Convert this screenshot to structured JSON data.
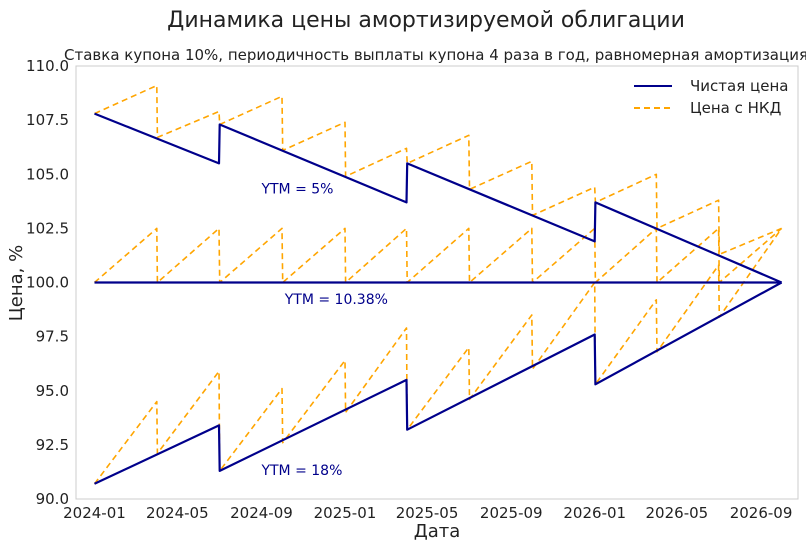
{
  "chart_data": {
    "type": "line",
    "title": "Динамика цены амортизируемой облигации",
    "subtitle": "Ставка купона 10%, периодичность выплаты купона 4 раза в год, равномерная амортизация",
    "xlabel": "Дата",
    "ylabel": "Цена, %",
    "ylim": [
      90,
      110
    ],
    "yticks": [
      "90.0",
      "92.5",
      "95.0",
      "97.5",
      "100.0",
      "102.5",
      "105.0",
      "107.5",
      "110.0"
    ],
    "xlim": [
      "2023-12-05",
      "2026-10-25"
    ],
    "xticks": [
      "2024-01",
      "2024-05",
      "2024-09",
      "2025-01",
      "2025-05",
      "2025-09",
      "2026-01",
      "2026-05",
      "2026-09"
    ],
    "grid": false,
    "legend_position": "top-right",
    "legend": [
      {
        "label": "Чистая цена",
        "color": "#00008b",
        "style": "solid"
      },
      {
        "label": "Цена с НКД",
        "color": "#ffa500",
        "style": "dashed"
      }
    ],
    "coupon_dates": [
      "2024-01-01",
      "2024-04-01",
      "2024-07-01",
      "2024-10-01",
      "2025-01-01",
      "2025-04-01",
      "2025-07-01",
      "2025-10-01",
      "2026-01-01",
      "2026-04-01",
      "2026-07-01",
      "2026-10-01"
    ],
    "annotations": [
      {
        "text": "YTM = 5%",
        "x": "2024-09-01",
        "y": 104.1,
        "color": "#00008b"
      },
      {
        "text": "YTM = 10.38%",
        "x": "2024-10-05",
        "y": 99.0,
        "color": "#00008b"
      },
      {
        "text": "YTM = 18%",
        "x": "2024-09-01",
        "y": 91.1,
        "color": "#00008b"
      }
    ],
    "series": [
      {
        "name": "Чистая цена",
        "group": "YTM = 5%",
        "x": [
          "2024-01-01",
          "2024-07-01",
          "2024-07-02",
          "2025-04-01",
          "2025-04-02",
          "2026-01-01",
          "2026-01-02",
          "2026-10-01"
        ],
        "values": [
          107.8,
          105.5,
          107.3,
          103.7,
          105.5,
          101.9,
          103.7,
          100.0
        ]
      },
      {
        "name": "Цена с НКД",
        "group": "YTM = 5%",
        "x": [
          "2024-01-01",
          "2024-04-01",
          "2024-04-02",
          "2024-07-01",
          "2024-07-02",
          "2024-10-01",
          "2024-10-02",
          "2025-01-01",
          "2025-01-02",
          "2025-04-01",
          "2025-04-02",
          "2025-07-01",
          "2025-07-02",
          "2025-10-01",
          "2025-10-02",
          "2026-01-01",
          "2026-01-02",
          "2026-04-01",
          "2026-04-02",
          "2026-07-01",
          "2026-07-02",
          "2026-10-01"
        ],
        "values": [
          107.8,
          109.1,
          106.7,
          107.9,
          107.3,
          108.6,
          106.1,
          107.4,
          104.9,
          106.2,
          105.5,
          106.8,
          104.3,
          105.6,
          103.1,
          104.4,
          103.7,
          105.0,
          102.5,
          103.8,
          101.3,
          102.5
        ]
      },
      {
        "name": "Чистая цена",
        "group": "YTM = 10.38%",
        "x": [
          "2024-01-01",
          "2026-10-01"
        ],
        "values": [
          100.0,
          100.0
        ]
      },
      {
        "name": "Цена с НКД",
        "group": "YTM = 10.38%",
        "x": [
          "2024-01-01",
          "2024-04-01",
          "2024-04-02",
          "2024-07-01",
          "2024-07-02",
          "2024-10-01",
          "2024-10-02",
          "2025-01-01",
          "2025-01-02",
          "2025-04-01",
          "2025-04-02",
          "2025-07-01",
          "2025-07-02",
          "2025-10-01",
          "2025-10-02",
          "2026-01-01",
          "2026-01-02",
          "2026-04-01",
          "2026-04-02",
          "2026-07-01",
          "2026-07-02",
          "2026-10-01"
        ],
        "values": [
          100.0,
          102.5,
          100.0,
          102.5,
          100.0,
          102.5,
          100.0,
          102.5,
          100.0,
          102.5,
          100.0,
          102.5,
          100.0,
          102.5,
          100.0,
          102.5,
          100.0,
          102.5,
          100.0,
          102.5,
          100.0,
          102.5
        ]
      },
      {
        "name": "Чистая цена",
        "group": "YTM = 18%",
        "x": [
          "2024-01-01",
          "2024-07-01",
          "2024-07-02",
          "2025-04-01",
          "2025-04-02",
          "2026-01-01",
          "2026-01-02",
          "2026-10-01"
        ],
        "values": [
          90.7,
          93.4,
          91.3,
          95.5,
          93.2,
          97.6,
          95.3,
          100.0
        ]
      },
      {
        "name": "Цена с НКД",
        "group": "YTM = 18%",
        "x": [
          "2024-01-01",
          "2024-04-01",
          "2024-04-02",
          "2024-07-01",
          "2024-07-02",
          "2024-10-01",
          "2024-10-02",
          "2025-01-01",
          "2025-01-02",
          "2025-04-01",
          "2025-04-02",
          "2025-07-01",
          "2025-07-02",
          "2025-10-01",
          "2025-10-02",
          "2026-01-01",
          "2026-01-02",
          "2026-04-01",
          "2026-04-02",
          "2026-07-01",
          "2026-07-02",
          "2026-10-01"
        ],
        "values": [
          90.7,
          94.5,
          92.1,
          95.9,
          91.3,
          95.1,
          92.6,
          96.4,
          94.0,
          97.9,
          93.2,
          97.0,
          94.6,
          98.5,
          96.0,
          100.0,
          95.3,
          99.2,
          96.8,
          100.8,
          98.4,
          102.5
        ]
      }
    ]
  }
}
